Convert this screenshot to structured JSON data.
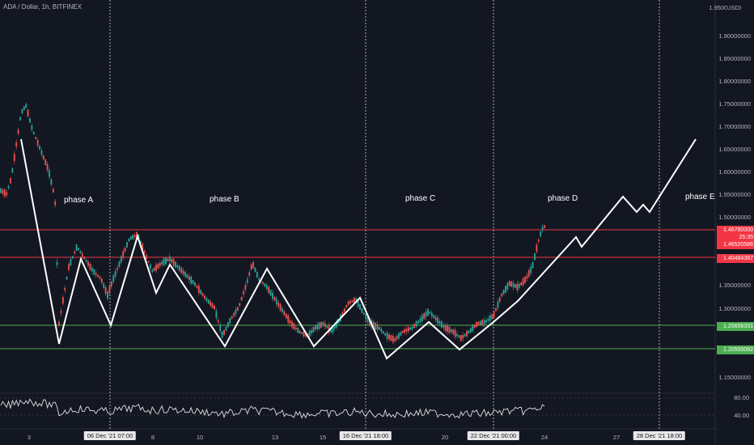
{
  "header": {
    "title": "ADA / Dollar, 1h, BITFINEX"
  },
  "price_axis": {
    "currency": "USD",
    "top_partial": "1.95000000",
    "labels": [
      "1.90000000",
      "1.85000000",
      "1.80000000",
      "1.75000000",
      "1.70000000",
      "1.65000000",
      "1.60000000",
      "1.55000000",
      "1.50000000",
      "1.35000000",
      "1.30000000",
      "1.15000000"
    ]
  },
  "price_tags": [
    {
      "value": "1.46780000",
      "color": "#f23645"
    },
    {
      "value": "25:35",
      "color": "#f23645"
    },
    {
      "value": "1.46520586",
      "color": "#f23645"
    },
    {
      "value": "1.40484387",
      "color": "#f23645"
    },
    {
      "value": "1.25656331",
      "color": "#4caf50"
    },
    {
      "value": "1.20500062",
      "color": "#4caf50"
    }
  ],
  "oscillator_axis": {
    "labels": [
      "80.00",
      "40.00"
    ]
  },
  "time_axis": {
    "labels": [
      "3",
      "8",
      "10",
      "13",
      "15",
      "20",
      "24",
      "27"
    ],
    "boxed": [
      "06 Dec '21   07:00",
      "16 Dec '21   18:00",
      "22 Dec '21   00:00",
      "28 Dec '21   18:00"
    ]
  },
  "phases": [
    "phase A",
    "phase B",
    "phase C",
    "phase D",
    "phase E"
  ],
  "colors": {
    "background": "#131722",
    "resistance": "#f23645",
    "support": "#4caf50",
    "up": "#26a69a",
    "down": "#ef5350",
    "path": "#ffffff"
  },
  "horizontal_levels": [
    {
      "price": 1.4678,
      "kind": "resistance"
    },
    {
      "price": 1.40484387,
      "kind": "resistance"
    },
    {
      "price": 1.25656331,
      "kind": "support"
    },
    {
      "price": 1.20500062,
      "kind": "support"
    }
  ]
}
